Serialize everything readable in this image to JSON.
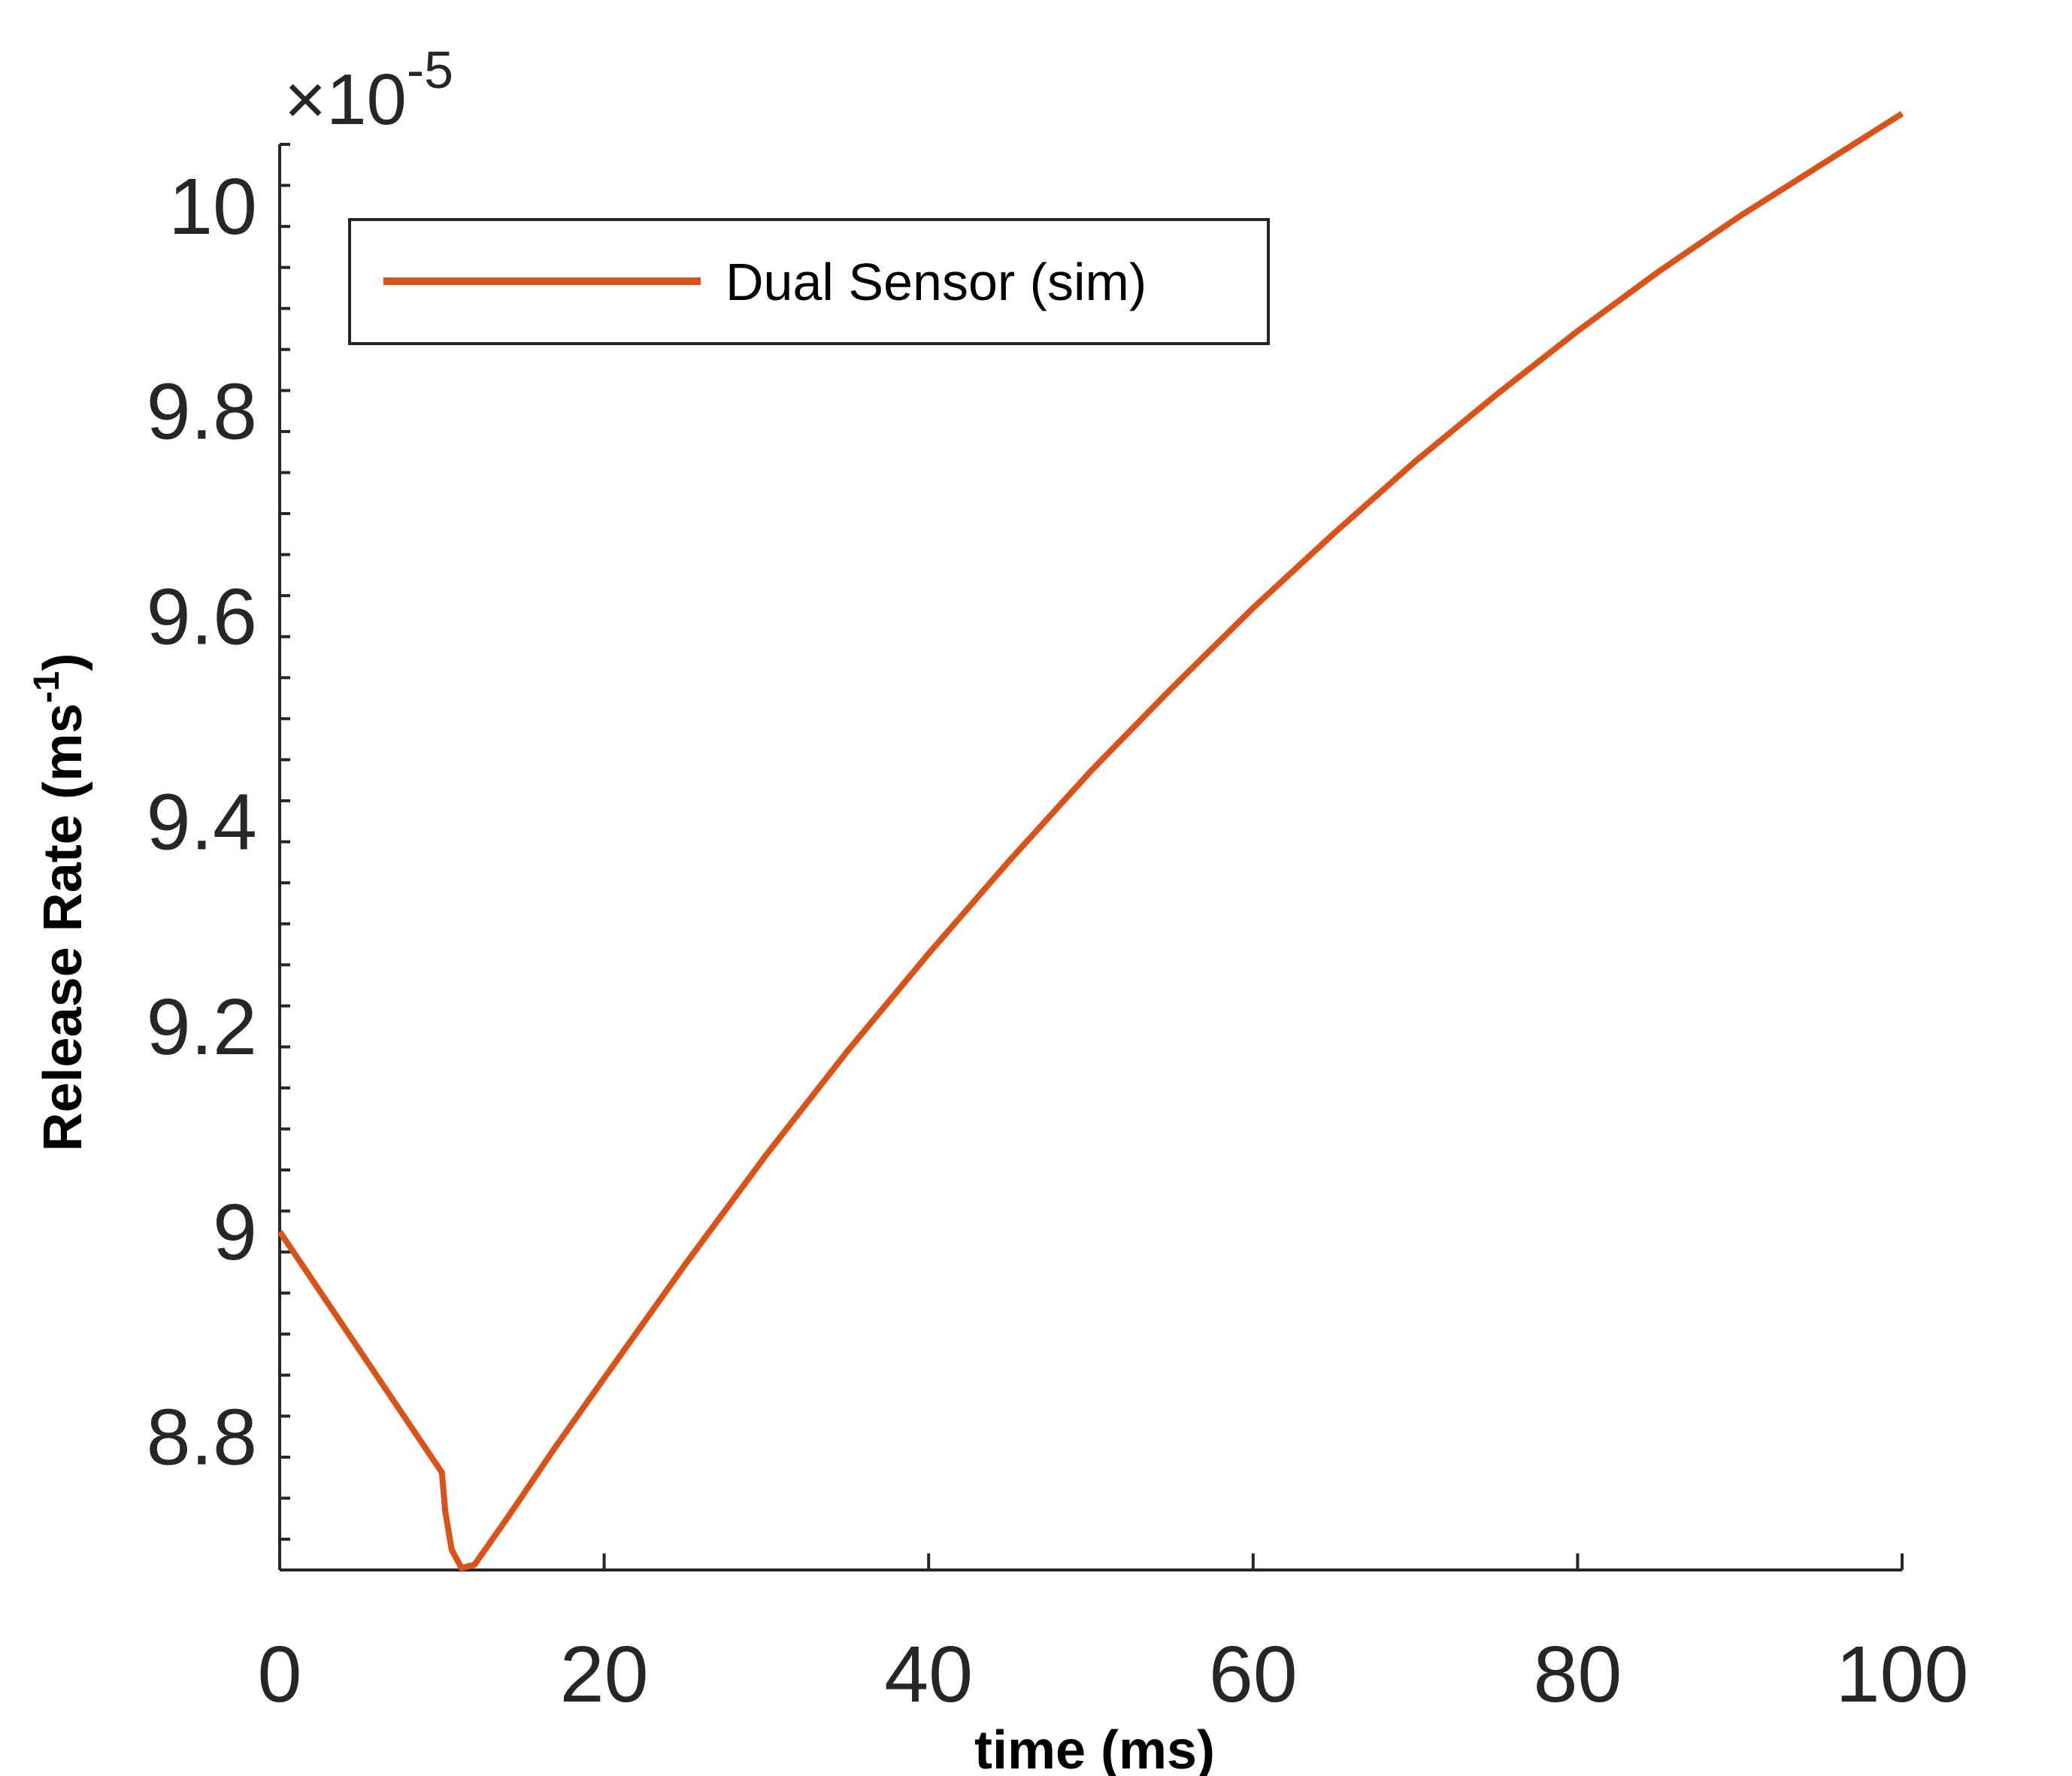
{
  "chart_data": {
    "type": "line",
    "xlabel": "time (ms)",
    "ylabel_main": "Release Rate (ms",
    "ylabel_sup": "-1",
    "ylabel_close": ")",
    "y_multiplier_base": "×10",
    "y_multiplier_exp": "-5",
    "xlim": [
      0,
      100
    ],
    "ylim": [
      8.67,
      10.06
    ],
    "x_ticks": [
      0,
      20,
      40,
      60,
      80,
      100
    ],
    "x_tick_labels": [
      "0",
      "20",
      "40",
      "60",
      "80",
      "100"
    ],
    "y_ticks": [
      8.8,
      9.0,
      9.2,
      9.4,
      9.6,
      9.8,
      10.0
    ],
    "y_tick_labels": [
      "8.8",
      "9",
      "9.2",
      "9.4",
      "9.6",
      "9.8",
      "10"
    ],
    "grid": false,
    "legend_position": "top-left",
    "series": [
      {
        "name": "Dual Sensor (sim)",
        "color": "#D95319",
        "x": [
          0,
          10,
          10.2,
          10.6,
          11.2,
          12,
          14,
          17,
          20,
          25,
          30,
          35,
          40,
          45,
          50,
          55,
          60,
          65,
          70,
          75,
          80,
          85,
          90,
          95,
          100
        ],
        "y": [
          9.0,
          8.765,
          8.728,
          8.69,
          8.672,
          8.675,
          8.72,
          8.79,
          8.857,
          8.968,
          9.075,
          9.176,
          9.271,
          9.362,
          9.449,
          9.53,
          9.608,
          9.681,
          9.751,
          9.816,
          9.878,
          9.936,
          9.99,
          10.04,
          10.09
        ]
      }
    ]
  }
}
